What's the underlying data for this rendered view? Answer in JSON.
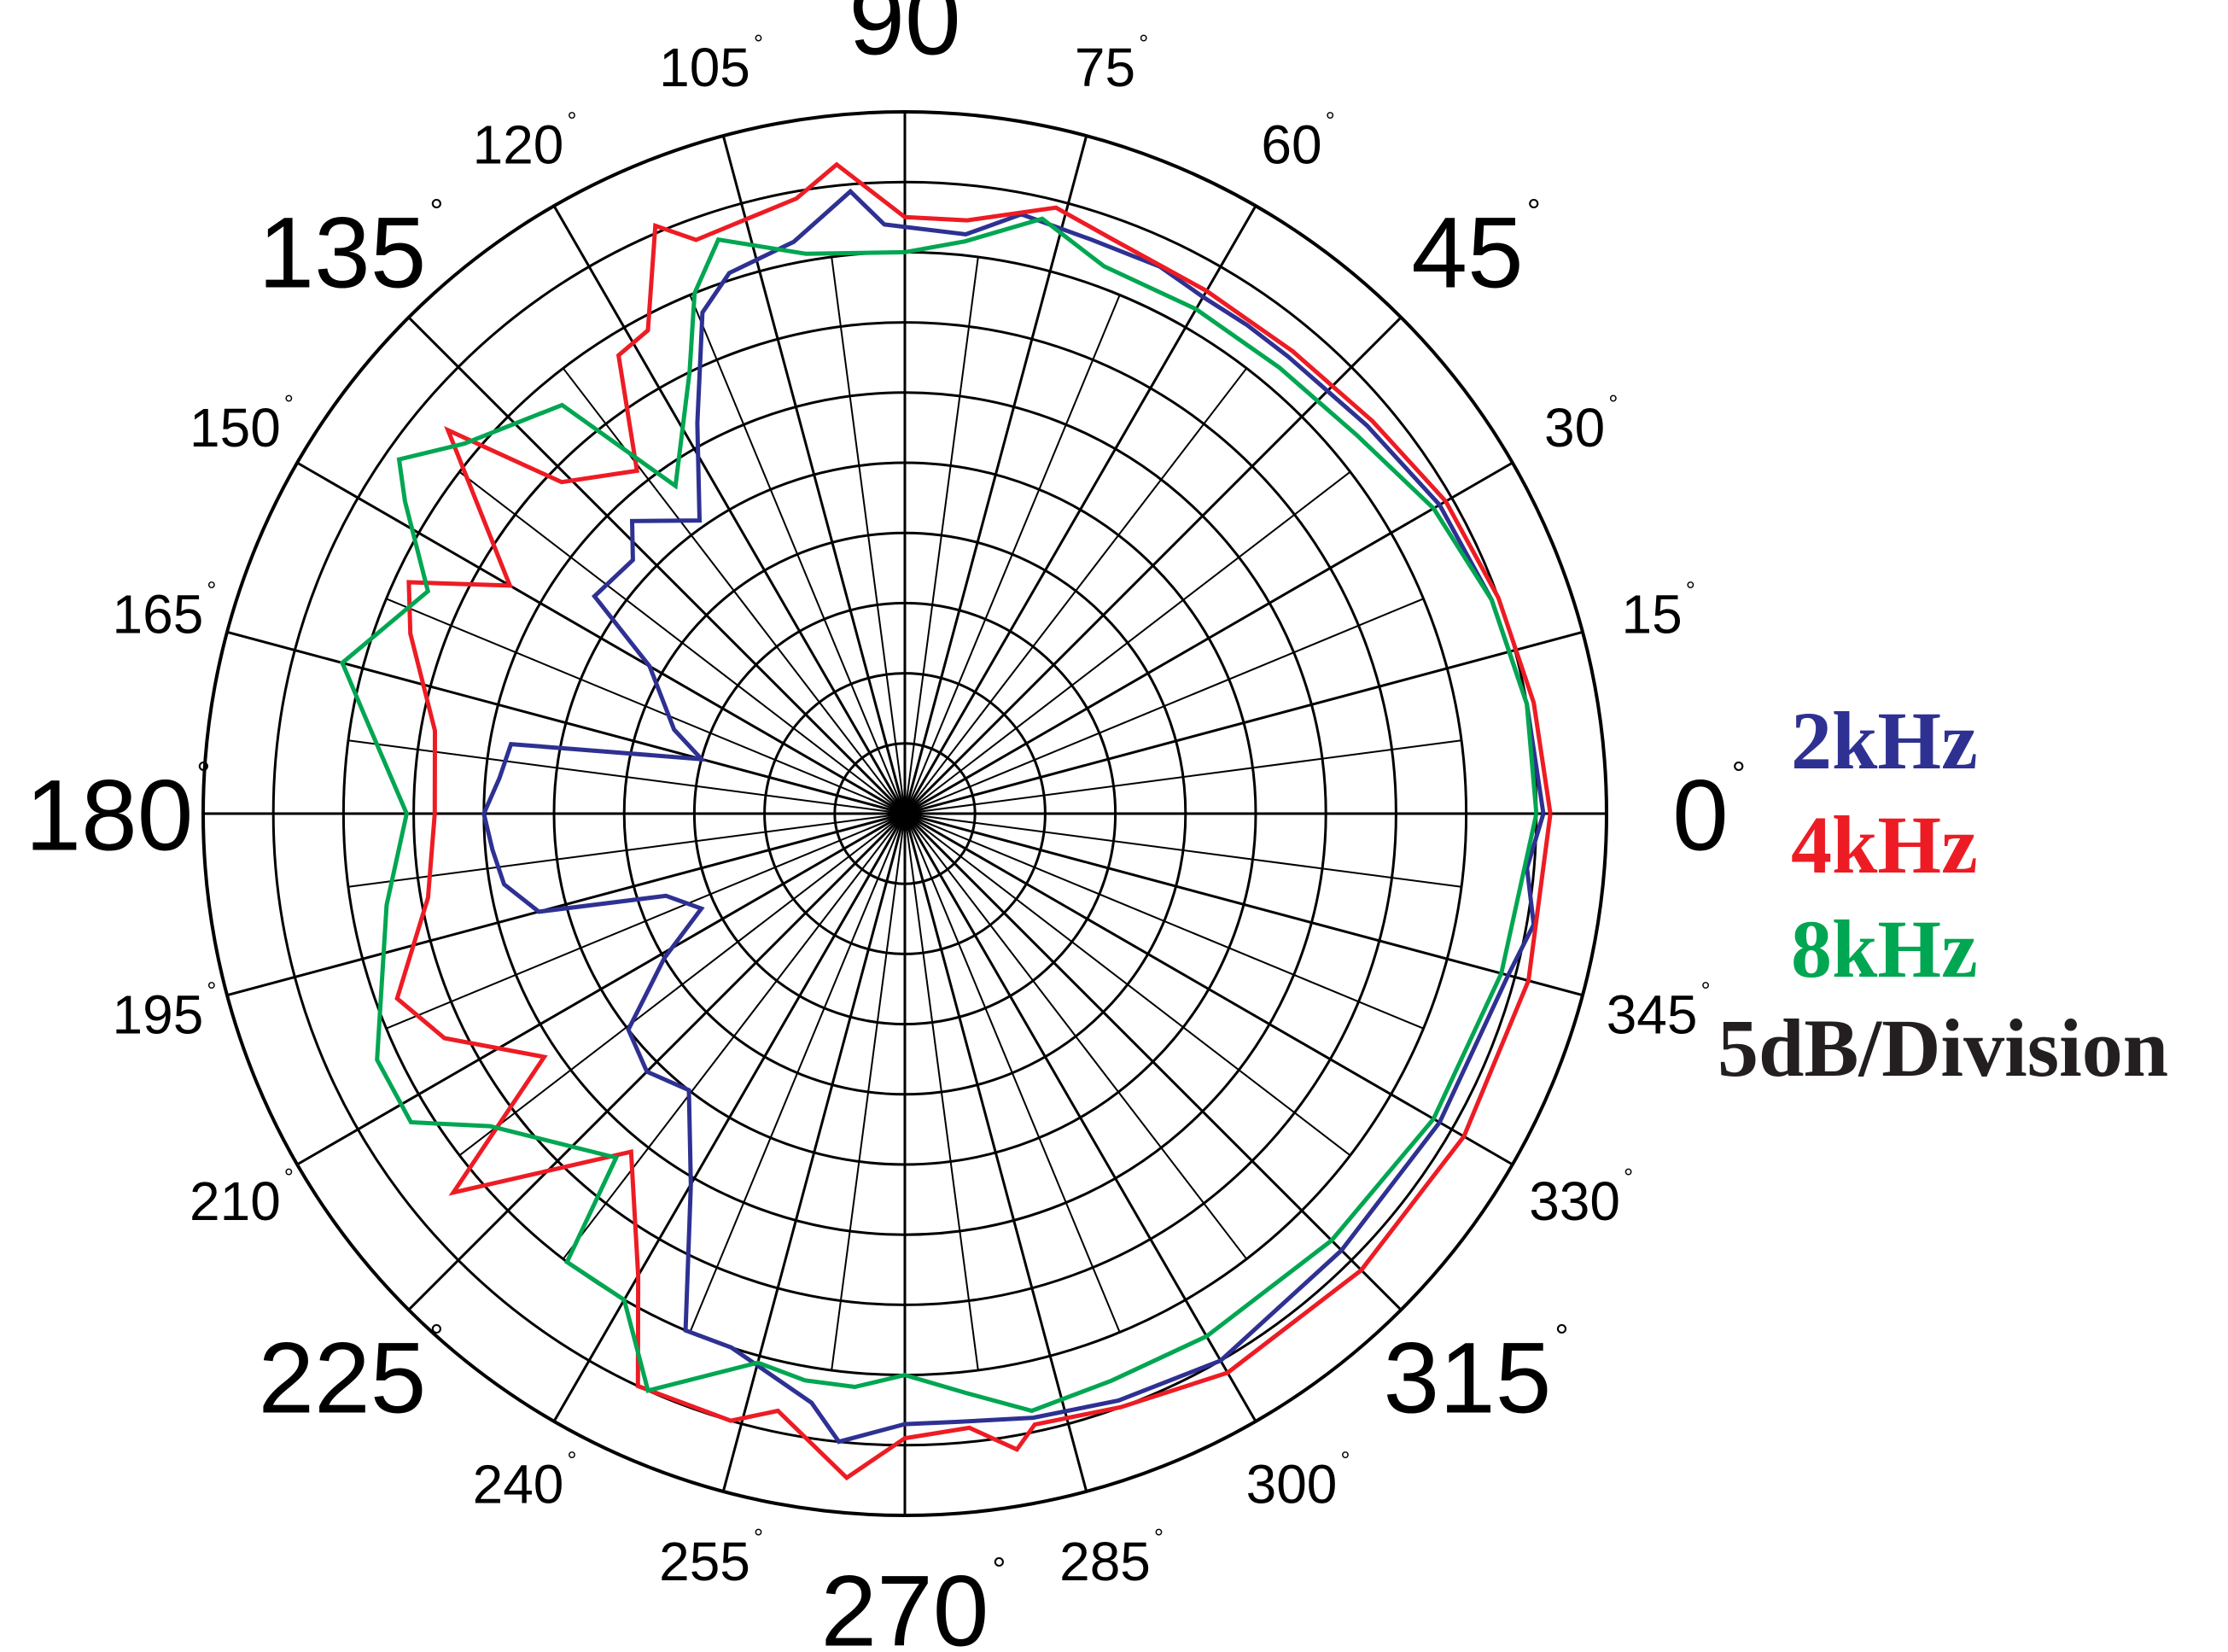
{
  "chart_data": {
    "type": "polar",
    "title": "",
    "radial_axis": {
      "units": "dB",
      "step_db": 5,
      "divisions": 10,
      "label": "5dB/Division"
    },
    "angular_axis": {
      "spokes_every_deg": 15,
      "tick_labels": [
        {
          "angle": 0,
          "label": "0",
          "size": "major"
        },
        {
          "angle": 15,
          "label": "15",
          "size": "minor"
        },
        {
          "angle": 30,
          "label": "30",
          "size": "minor"
        },
        {
          "angle": 45,
          "label": "45",
          "size": "major"
        },
        {
          "angle": 60,
          "label": "60",
          "size": "minor"
        },
        {
          "angle": 75,
          "label": "75",
          "size": "minor"
        },
        {
          "angle": 90,
          "label": "90",
          "size": "major"
        },
        {
          "angle": 105,
          "label": "105",
          "size": "minor"
        },
        {
          "angle": 120,
          "label": "120",
          "size": "minor"
        },
        {
          "angle": 135,
          "label": "135",
          "size": "major"
        },
        {
          "angle": 150,
          "label": "150",
          "size": "minor"
        },
        {
          "angle": 165,
          "label": "165",
          "size": "minor"
        },
        {
          "angle": 180,
          "label": "180",
          "size": "major"
        },
        {
          "angle": 195,
          "label": "195",
          "size": "minor"
        },
        {
          "angle": 210,
          "label": "210",
          "size": "minor"
        },
        {
          "angle": 225,
          "label": "225",
          "size": "major"
        },
        {
          "angle": 240,
          "label": "240",
          "size": "minor"
        },
        {
          "angle": 255,
          "label": "255",
          "size": "minor"
        },
        {
          "angle": 270,
          "label": "270",
          "size": "major"
        },
        {
          "angle": 285,
          "label": "285",
          "size": "minor"
        },
        {
          "angle": 300,
          "label": "300",
          "size": "minor"
        },
        {
          "angle": 315,
          "label": "315",
          "size": "major"
        },
        {
          "angle": 330,
          "label": "330",
          "size": "minor"
        },
        {
          "angle": 345,
          "label": "345",
          "size": "minor"
        }
      ],
      "degree_symbol": "°"
    },
    "grid": true,
    "legend_position": "right",
    "series": [
      {
        "name": "2kHz",
        "color": "#2e3192",
        "points": [
          [
            0,
            9.1
          ],
          [
            10,
            9.0
          ],
          [
            20,
            8.9
          ],
          [
            30,
            8.8
          ],
          [
            40,
            8.6
          ],
          [
            50,
            8.5
          ],
          [
            55,
            8.5
          ],
          [
            60,
            8.5
          ],
          [
            65,
            8.6
          ],
          [
            72,
            8.6
          ],
          [
            79,
            8.7
          ],
          [
            84,
            8.3
          ],
          [
            92,
            8.4
          ],
          [
            95,
            8.9
          ],
          [
            101,
            8.3
          ],
          [
            108,
            8.1
          ],
          [
            112,
            7.7
          ],
          [
            118,
            6.3
          ],
          [
            125,
            5.1
          ],
          [
            133,
            5.7
          ],
          [
            137,
            5.3
          ],
          [
            145,
            5.4
          ],
          [
            150,
            4.2
          ],
          [
            160,
            3.5
          ],
          [
            165,
            3.0
          ],
          [
            170,
            5.7
          ],
          [
            175,
            5.8
          ],
          [
            180,
            6.0
          ],
          [
            185,
            5.9
          ],
          [
            190,
            5.8
          ],
          [
            195,
            5.4
          ],
          [
            199,
            3.6
          ],
          [
            205,
            3.2
          ],
          [
            211,
            4.0
          ],
          [
            218,
            5.0
          ],
          [
            225,
            5.2
          ],
          [
            232,
            5.0
          ],
          [
            240,
            6.1
          ],
          [
            247,
            8.0
          ],
          [
            252,
            8.0
          ],
          [
            261,
            8.5
          ],
          [
            264,
            9.0
          ],
          [
            270,
            8.7
          ],
          [
            275,
            8.7
          ],
          [
            282,
            8.8
          ],
          [
            290,
            8.9
          ],
          [
            300,
            9.0
          ],
          [
            315,
            8.8
          ],
          [
            330,
            8.8
          ],
          [
            345,
            8.9
          ],
          [
            350,
            9.1
          ],
          [
            355,
            8.9
          ],
          [
            360,
            9.1
          ]
        ]
      },
      {
        "name": "4kHz",
        "color": "#ed1c24",
        "points": [
          [
            0,
            9.2
          ],
          [
            10,
            9.1
          ],
          [
            20,
            9.0
          ],
          [
            30,
            8.9
          ],
          [
            40,
            8.7
          ],
          [
            50,
            8.6
          ],
          [
            60,
            8.6
          ],
          [
            70,
            8.7
          ],
          [
            76,
            8.9
          ],
          [
            84,
            8.5
          ],
          [
            90,
            8.5
          ],
          [
            96,
            9.3
          ],
          [
            100,
            8.9
          ],
          [
            110,
            8.7
          ],
          [
            113,
            9.1
          ],
          [
            118,
            7.8
          ],
          [
            122,
            7.7
          ],
          [
            128,
            6.2
          ],
          [
            136,
            6.8
          ],
          [
            140,
            8.5
          ],
          [
            150,
            6.5
          ],
          [
            155,
            7.8
          ],
          [
            160,
            7.5
          ],
          [
            170,
            6.8
          ],
          [
            180,
            6.7
          ],
          [
            190,
            6.9
          ],
          [
            200,
            7.7
          ],
          [
            206,
            7.3
          ],
          [
            214,
            6.2
          ],
          [
            220,
            8.4
          ],
          [
            231,
            6.2
          ],
          [
            240,
            7.6
          ],
          [
            245,
            9.0
          ],
          [
            254,
            9.0
          ],
          [
            258,
            8.7
          ],
          [
            265,
            9.5
          ],
          [
            270,
            8.9
          ],
          [
            276,
            8.8
          ],
          [
            280,
            9.2
          ],
          [
            282,
            8.9
          ],
          [
            290,
            9.0
          ],
          [
            300,
            9.2
          ],
          [
            315,
            9.2
          ],
          [
            330,
            9.2
          ],
          [
            345,
            9.2
          ],
          [
            360,
            9.2
          ]
        ]
      },
      {
        "name": "8kHz",
        "color": "#00a651",
        "points": [
          [
            0,
            9.0
          ],
          [
            10,
            9.0
          ],
          [
            20,
            8.9
          ],
          [
            30,
            8.7
          ],
          [
            40,
            8.4
          ],
          [
            50,
            8.3
          ],
          [
            60,
            8.3
          ],
          [
            70,
            8.3
          ],
          [
            77,
            8.7
          ],
          [
            84,
            8.2
          ],
          [
            90,
            8.0
          ],
          [
            100,
            8.1
          ],
          [
            108,
            8.6
          ],
          [
            112,
            8.0
          ],
          [
            116,
            7.0
          ],
          [
            125,
            5.7
          ],
          [
            130,
            7.6
          ],
          [
            140,
            8.2
          ],
          [
            145,
            8.8
          ],
          [
            148,
            8.4
          ],
          [
            155,
            7.5
          ],
          [
            165,
            8.3
          ],
          [
            170,
            7.8
          ],
          [
            180,
            7.1
          ],
          [
            190,
            7.5
          ],
          [
            205,
            8.3
          ],
          [
            212,
            8.3
          ],
          [
            217,
            7.4
          ],
          [
            230,
            6.4
          ],
          [
            233,
            8.0
          ],
          [
            240,
            8.0
          ],
          [
            246,
            9.0
          ],
          [
            255,
            8.1
          ],
          [
            260,
            8.2
          ],
          [
            265,
            8.2
          ],
          [
            270,
            8.0
          ],
          [
            276,
            8.3
          ],
          [
            282,
            8.7
          ],
          [
            290,
            8.6
          ],
          [
            300,
            8.6
          ],
          [
            315,
            8.6
          ],
          [
            330,
            8.7
          ],
          [
            345,
            8.8
          ],
          [
            360,
            9.0
          ]
        ]
      }
    ]
  }
}
